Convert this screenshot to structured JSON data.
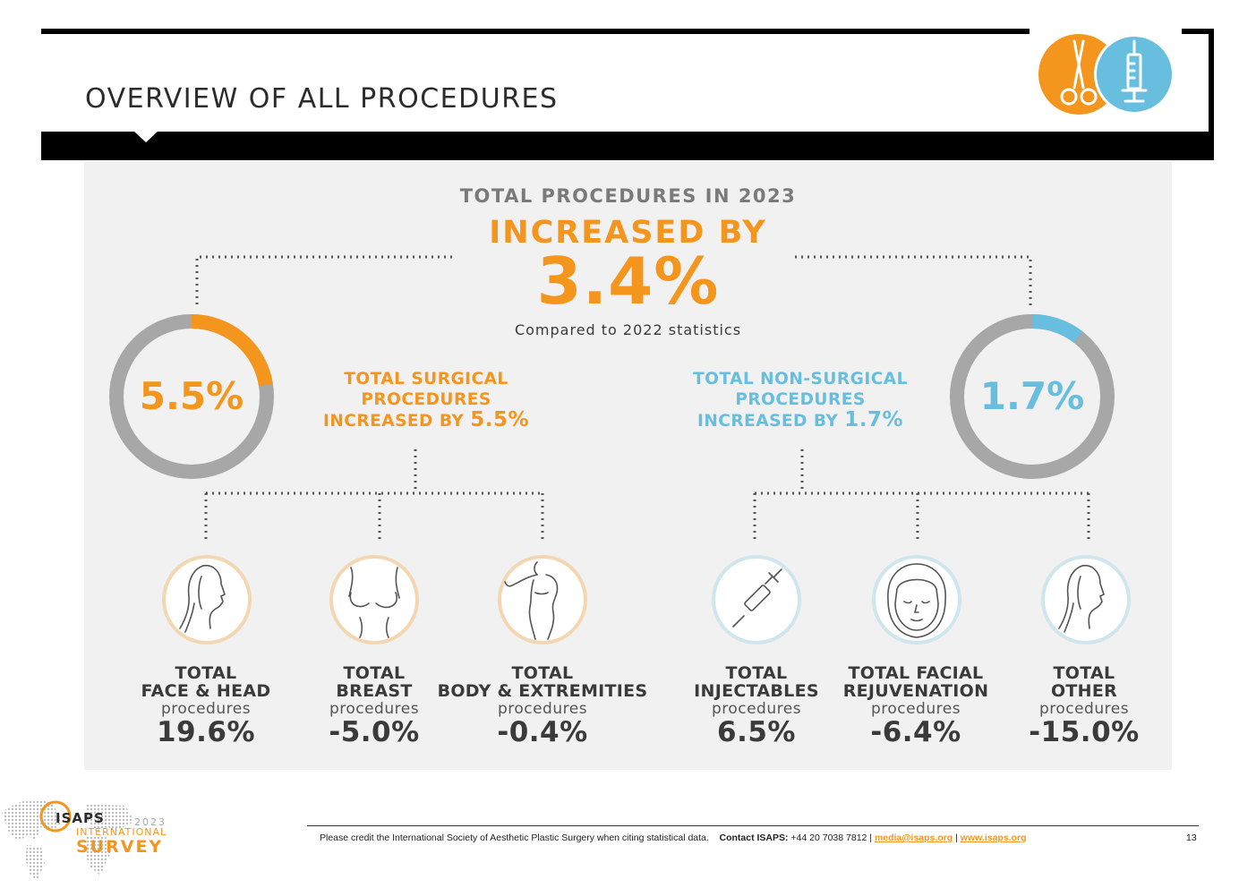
{
  "header": {
    "title": "OVERVIEW OF ALL PROCEDURES",
    "icons": [
      "scissors-icon",
      "syringe-icon"
    ]
  },
  "summary": {
    "line1": "TOTAL PROCEDURES IN 2023",
    "line2": "INCREASED BY",
    "value": "3.4%",
    "note": "Compared to 2022 statistics"
  },
  "surgical": {
    "donut_value": "5.5%",
    "donut_fraction": 0.225,
    "head_line1": "TOTAL SURGICAL",
    "head_line2": "PROCEDURES",
    "head_line3": "INCREASED BY ",
    "head_value": "5.5%",
    "color": "#f4961e"
  },
  "nonsurgical": {
    "donut_value": "1.7%",
    "donut_fraction": 0.105,
    "head_line1": "TOTAL NON-SURGICAL",
    "head_line2": "PROCEDURES",
    "head_line3": "INCREASED BY ",
    "head_value": "1.7%",
    "color": "#67bedf"
  },
  "categories": [
    {
      "line1": "TOTAL",
      "line2": "FACE & HEAD",
      "line3": "procedures",
      "pct": "19.6%",
      "icon": "face-profile-icon"
    },
    {
      "line1": "TOTAL",
      "line2": "BREAST",
      "line3": "procedures",
      "pct": "-5.0%",
      "icon": "breast-icon"
    },
    {
      "line1": "TOTAL",
      "line2": "BODY & EXTREMITIES",
      "line3": "procedures",
      "pct": "-0.4%",
      "icon": "body-icon"
    },
    {
      "line1": "TOTAL",
      "line2": "INJECTABLES",
      "line3": "procedures",
      "pct": "6.5%",
      "icon": "syringe-icon"
    },
    {
      "line1": "TOTAL FACIAL",
      "line2": "REJUVENATION",
      "line3": "procedures",
      "pct": "-6.4%",
      "icon": "face-front-icon"
    },
    {
      "line1": "TOTAL",
      "line2": "OTHER",
      "line3": "procedures",
      "pct": "-15.0%",
      "icon": "face-profile-icon"
    }
  ],
  "footer": {
    "credit": "Please credit the International Society of Aesthetic Plastic Surgery when citing statistical data.",
    "contact_label": "Contact ISAPS:",
    "phone": " +44 20 7038 7812 | ",
    "email": "media@isaps.org",
    "sep": " | ",
    "web": "www.isaps.org",
    "page": "13"
  },
  "logo": {
    "name": "ISAPS",
    "year": "2023",
    "line1": "INTERNATIONAL",
    "line2": "SURVEY"
  }
}
